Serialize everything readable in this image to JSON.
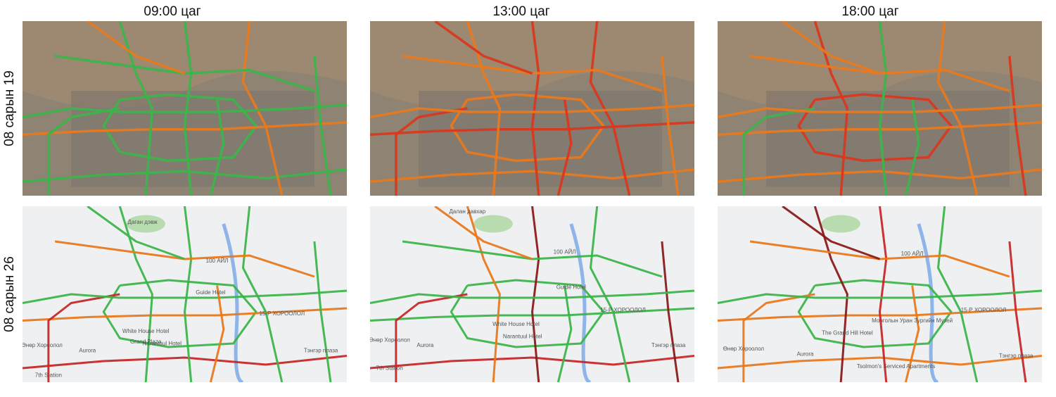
{
  "header": {
    "columns": [
      "09:00 цаг",
      "13:00 цаг",
      "18:00 цаг"
    ],
    "rows": [
      "08 сарын 19",
      "08 сарын 26"
    ]
  },
  "maps": [
    {
      "labels": [
        "Даган дэвж",
        "100 АЙЛ",
        "Guide Hotel",
        "White House Hotel",
        "Narantuul Hotel",
        "Grand Plaza",
        "Aurora",
        "15-Р ХОРООЛОЛ",
        "Тэнгэр плаза",
        "7th Station",
        "Өнөр Хороолол"
      ]
    },
    {
      "labels": [
        "Далан давхар",
        "100 АЙЛ",
        "Guide Hotel",
        "White House Hotel",
        "Narantuul Hotel",
        "Aurora",
        "15-Р ХОРООЛОЛ",
        "Тэнгэр плаза",
        "7th Station",
        "Өнөр Хороолол"
      ]
    },
    {
      "labels": [
        "100 АЙЛ",
        "Монголын Уран Зургийн Музей",
        "The Grand Hill Hotel",
        "Tsolmon's Serviced Apartments",
        "Aurora",
        "15-Р ХОРООЛОЛ",
        "Тэнгэр плаза",
        "Өнөр Хороолол"
      ]
    }
  ]
}
